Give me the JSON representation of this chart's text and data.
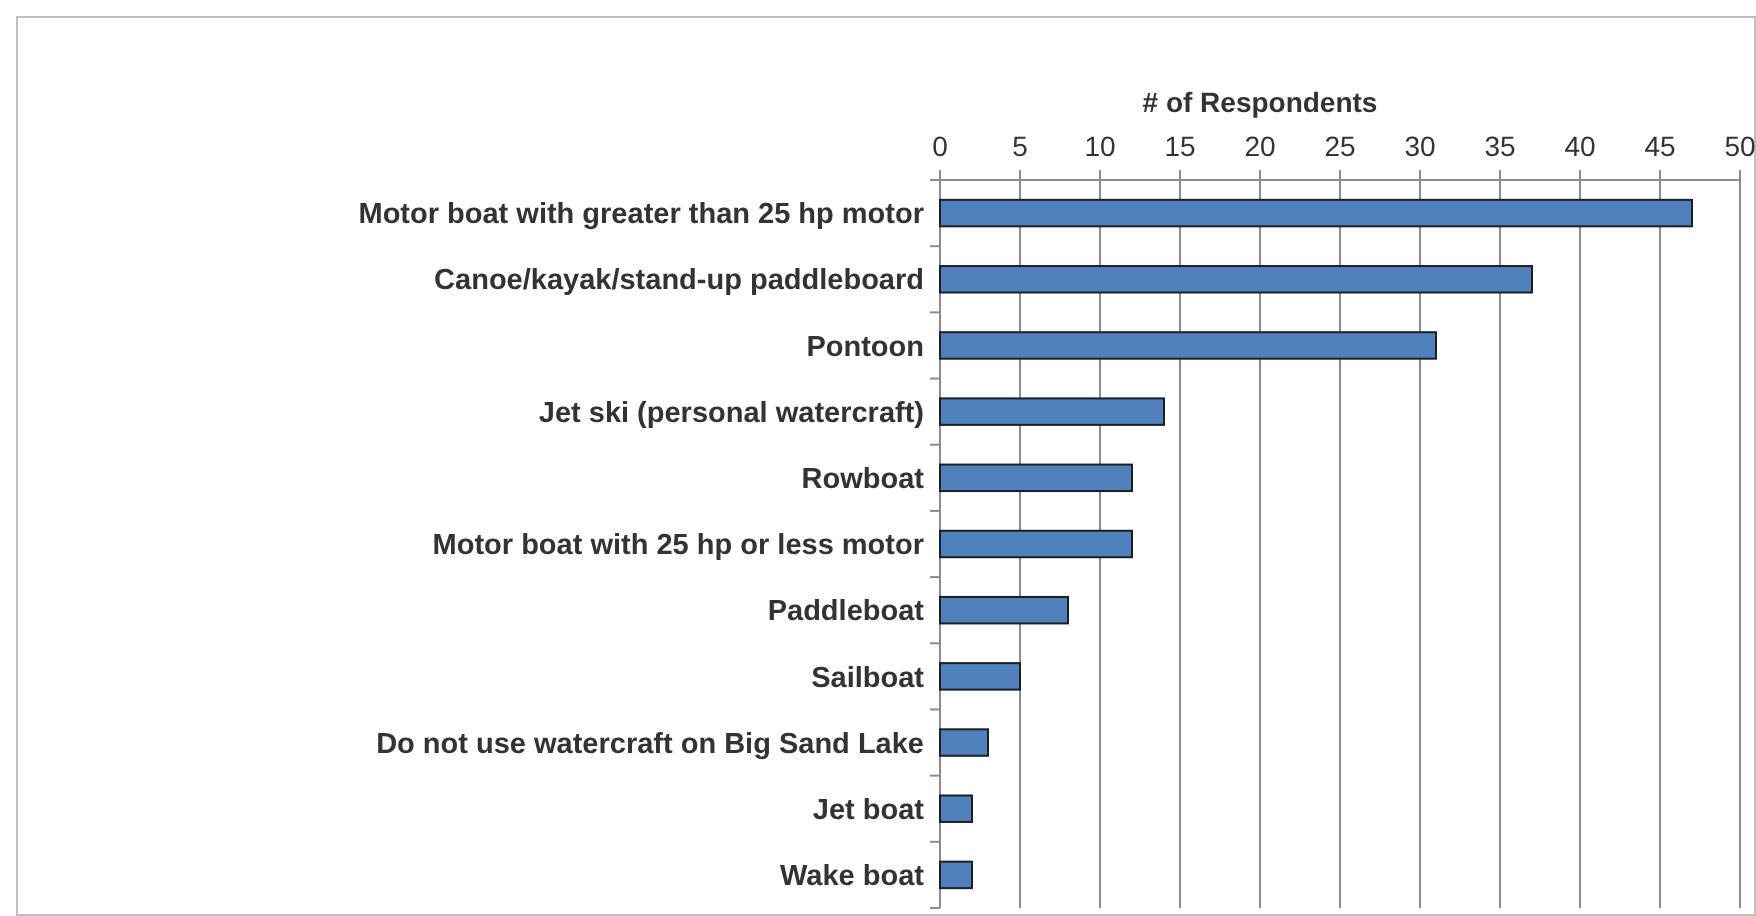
{
  "chart_data": {
    "type": "bar",
    "orientation": "horizontal",
    "xlabel": "# of Respondents",
    "categories": [
      "Motor boat with greater than 25 hp motor",
      "Canoe/kayak/stand-up paddleboard",
      "Pontoon",
      "Jet ski (personal watercraft)",
      "Rowboat",
      "Motor boat with 25 hp or less motor",
      "Paddleboat",
      "Sailboat",
      "Do not use watercraft on Big Sand Lake",
      "Jet boat",
      "Wake boat"
    ],
    "values": [
      47,
      37,
      31,
      14,
      12,
      12,
      8,
      5,
      3,
      2,
      2
    ],
    "color": "#4f81bd",
    "xlim": [
      0,
      50
    ],
    "xticks": [
      0,
      5,
      10,
      15,
      20,
      25,
      30,
      35,
      40,
      45,
      50
    ],
    "grid": "x"
  }
}
